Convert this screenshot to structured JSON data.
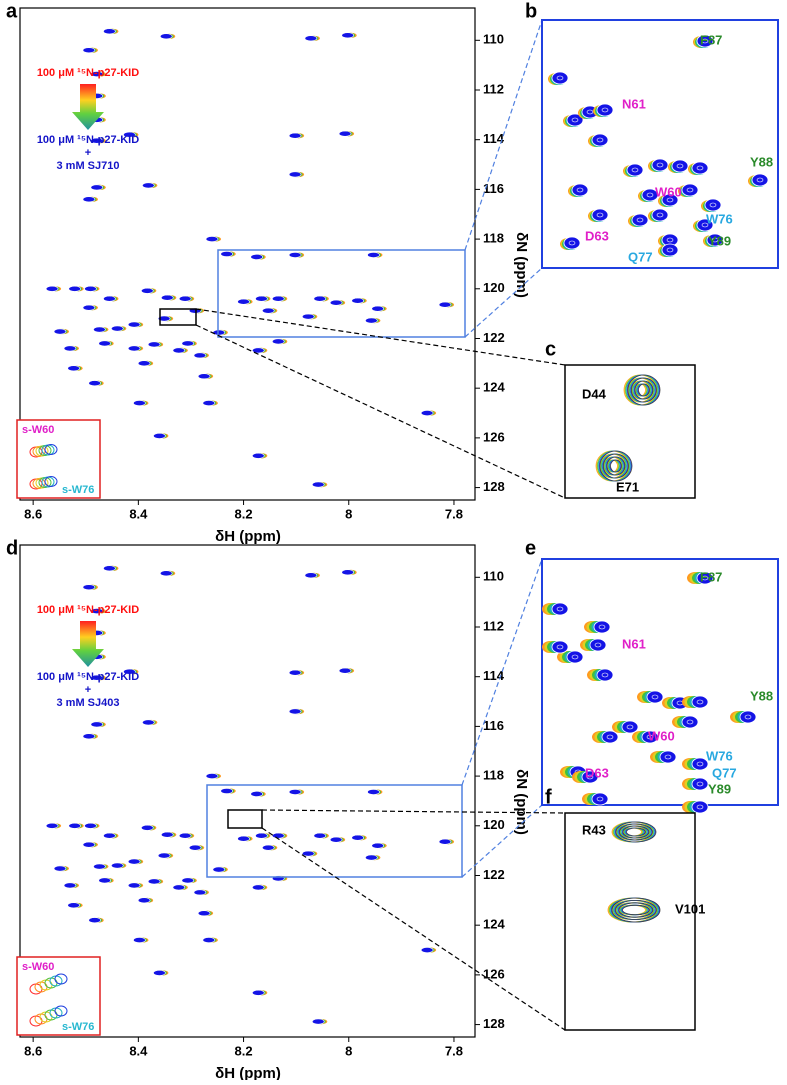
{
  "chart_data": [
    {
      "type": "scatter",
      "panel_label": "a",
      "x_label": "δH (ppm)",
      "y_label": "δN (ppm)",
      "xlim": [
        8.625,
        7.76
      ],
      "ylim": [
        108.7,
        128.5
      ],
      "xticks": [
        8.6,
        8.4,
        8.2,
        8.0,
        7.8
      ],
      "yticks": [
        110,
        112,
        114,
        116,
        118,
        120,
        122,
        124,
        126,
        128
      ],
      "free_label": "100 μM ¹⁵N-p27-KID",
      "plus_label": "+",
      "bound_label": "100 μM ¹⁵N-p27-KID",
      "ligand_label": "3 mM SJ710",
      "inset_labels": [
        "s-W60",
        "s-W76"
      ],
      "color": "#1414e6",
      "x": [
        8.455,
        8.347,
        8.072,
        8.002,
        8.494,
        8.479,
        8.479,
        8.479,
        8.479,
        8.417,
        8.479,
        8.494,
        8.381,
        8.26,
        8.232,
        8.175,
        8.007,
        8.102,
        8.102,
        7.953,
        8.102,
        8.564,
        8.521,
        8.491,
        8.455,
        8.494,
        8.383,
        8.345,
        8.311,
        8.292,
        8.2,
        8.166,
        8.134,
        8.055,
        8.024,
        7.983,
        7.945,
        7.817,
        8.549,
        8.474,
        8.44,
        8.408,
        8.351,
        8.247,
        8.306,
        8.153,
        8.077,
        7.957,
        8.53,
        8.464,
        8.408,
        8.37,
        8.323,
        8.283,
        8.172,
        8.134,
        8.523,
        8.389,
        8.275,
        8.483,
        8.266,
        8.398,
        8.36,
        7.851,
        8.172,
        8.058
      ],
      "y": [
        109.64,
        109.84,
        109.92,
        109.8,
        110.4,
        111.36,
        112.24,
        113.2,
        114.04,
        113.8,
        115.92,
        116.4,
        115.84,
        118.0,
        118.6,
        118.72,
        113.76,
        113.84,
        115.4,
        118.64,
        118.64,
        120.0,
        120.0,
        120.0,
        120.4,
        120.76,
        120.08,
        120.36,
        120.4,
        120.88,
        120.52,
        120.4,
        120.4,
        120.4,
        120.56,
        120.48,
        120.8,
        120.64,
        121.72,
        121.64,
        121.6,
        121.44,
        121.2,
        121.76,
        122.2,
        120.88,
        121.12,
        121.28,
        122.4,
        122.2,
        122.4,
        122.24,
        122.48,
        122.68,
        122.48,
        122.12,
        123.2,
        123.0,
        123.52,
        123.8,
        124.6,
        124.6,
        125.92,
        125.0,
        126.72,
        127.88
      ],
      "zoom_panels": [
        {
          "label": "b",
          "residues": [
            {
              "text": "F87",
              "color": "#2a8a2a"
            },
            {
              "text": "N61",
              "color": "#e020c8"
            },
            {
              "text": "W60",
              "color": "#e020c8"
            },
            {
              "text": "W76",
              "color": "#28a8e0"
            },
            {
              "text": "Q77",
              "color": "#28a8e0"
            },
            {
              "text": "D63",
              "color": "#e020c8"
            },
            {
              "text": "Y88",
              "color": "#2a8a2a"
            },
            {
              "text": "Y89",
              "color": "#2a8a2a"
            }
          ]
        },
        {
          "label": "c",
          "residues": [
            {
              "text": "D44",
              "color": "#000000"
            },
            {
              "text": "E71",
              "color": "#000000"
            }
          ]
        }
      ]
    },
    {
      "type": "scatter",
      "panel_label": "d",
      "x_label": "δH (ppm)",
      "y_label": "δN (ppm)",
      "xlim": [
        8.625,
        7.76
      ],
      "ylim": [
        108.7,
        128.5
      ],
      "xticks": [
        8.6,
        8.4,
        8.2,
        8.0,
        7.8
      ],
      "yticks": [
        110,
        112,
        114,
        116,
        118,
        120,
        122,
        124,
        126,
        128
      ],
      "free_label": "100 μM ¹⁵N-p27-KID",
      "plus_label": "+",
      "bound_label": "100 μM ¹⁵N-p27-KID",
      "ligand_label": "3 mM SJ403",
      "inset_labels": [
        "s-W60",
        "s-W76"
      ],
      "color": "#1414e6",
      "x": [
        8.455,
        8.347,
        8.072,
        8.002,
        8.494,
        8.479,
        8.479,
        8.479,
        8.479,
        8.417,
        8.479,
        8.494,
        8.381,
        8.26,
        8.232,
        8.175,
        8.007,
        8.102,
        8.102,
        7.953,
        8.102,
        8.564,
        8.521,
        8.491,
        8.455,
        8.494,
        8.383,
        8.345,
        8.311,
        8.292,
        8.2,
        8.166,
        8.134,
        8.055,
        8.024,
        7.983,
        7.945,
        7.817,
        8.549,
        8.474,
        8.44,
        8.408,
        8.351,
        8.247,
        8.306,
        8.153,
        8.077,
        7.957,
        8.53,
        8.464,
        8.408,
        8.37,
        8.323,
        8.283,
        8.172,
        8.134,
        8.523,
        8.389,
        8.275,
        8.483,
        8.266,
        8.398,
        8.36,
        7.851,
        8.172,
        8.058
      ],
      "y": [
        109.64,
        109.84,
        109.92,
        109.8,
        110.4,
        111.36,
        112.24,
        113.2,
        114.04,
        113.8,
        115.92,
        116.4,
        115.84,
        118.0,
        118.6,
        118.72,
        113.76,
        113.84,
        115.4,
        118.64,
        118.64,
        120.0,
        120.0,
        120.0,
        120.4,
        120.76,
        120.08,
        120.36,
        120.4,
        120.88,
        120.52,
        120.4,
        120.4,
        120.4,
        120.56,
        120.48,
        120.8,
        120.64,
        121.72,
        121.64,
        121.6,
        121.44,
        121.2,
        121.76,
        122.2,
        120.88,
        121.12,
        121.28,
        122.4,
        122.2,
        122.4,
        122.24,
        122.48,
        122.68,
        122.48,
        122.12,
        123.2,
        123.0,
        123.52,
        123.8,
        124.6,
        124.6,
        125.92,
        125.0,
        126.72,
        127.88
      ],
      "zoom_panels": [
        {
          "label": "e",
          "residues": [
            {
              "text": "F87",
              "color": "#2a8a2a"
            },
            {
              "text": "N61",
              "color": "#e020c8"
            },
            {
              "text": "W60",
              "color": "#e020c8"
            },
            {
              "text": "W76",
              "color": "#28a8e0"
            },
            {
              "text": "Q77",
              "color": "#28a8e0"
            },
            {
              "text": "D63",
              "color": "#e020c8"
            },
            {
              "text": "Y88",
              "color": "#2a8a2a"
            },
            {
              "text": "Y89",
              "color": "#2a8a2a"
            }
          ]
        },
        {
          "label": "f",
          "residues": [
            {
              "text": "R43",
              "color": "#000000"
            },
            {
              "text": "V101",
              "color": "#000000"
            }
          ]
        }
      ]
    }
  ]
}
